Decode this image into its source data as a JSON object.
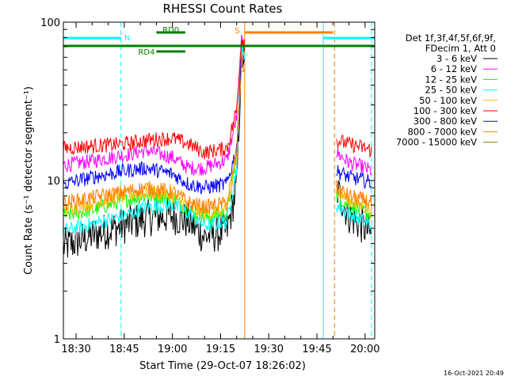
{
  "chart_data": {
    "type": "line",
    "title": "RHESSI Count Rates",
    "xlabel": "Start Time (29-Oct-07 18:26:02)",
    "ylabel": "Count Rate (s⁻¹ detector segment⁻¹)",
    "yscale": "log",
    "ylim": [
      1,
      100
    ],
    "xlim": [
      "18:26:02",
      "20:03:00"
    ],
    "x_ticks": [
      "18:30",
      "18:45",
      "19:00",
      "19:15",
      "19:30",
      "19:45",
      "20:00"
    ],
    "y_ticks": [
      "1",
      "10",
      "100"
    ],
    "legend_header": [
      "Det 1f,3f,4f,5f,6f,9f,",
      "FDecim 1, Att 0"
    ],
    "legend_position": "top-right, outside plot",
    "timestamp": "16-Oct-2021 20:49",
    "series": [
      {
        "name": "3 - 6 keV",
        "color": "#000000",
        "x": [
          "18:26:02",
          "18:35",
          "18:45",
          "18:52",
          "19:00",
          "19:05",
          "19:10",
          "19:17",
          "19:20",
          "19:21:30",
          "19:51",
          "19:55",
          "20:00",
          "20:02"
        ],
        "y": [
          3.8,
          4.5,
          5.2,
          5.8,
          6.0,
          5.5,
          4.4,
          4.8,
          9,
          60,
          9,
          6.0,
          5.0,
          4.5
        ]
      },
      {
        "name": "6 - 12 keV",
        "color": "#ff00ff",
        "x": [
          "18:26:02",
          "18:35",
          "18:45",
          "18:52",
          "19:00",
          "19:05",
          "19:10",
          "19:17",
          "19:20",
          "19:21:30",
          "19:51",
          "19:55",
          "20:00",
          "20:02"
        ],
        "y": [
          12.5,
          13.3,
          14.5,
          15.5,
          14.0,
          12.0,
          12.0,
          13.5,
          25,
          75,
          15,
          13.0,
          12.0,
          11.5
        ]
      },
      {
        "name": "12 - 25 keV",
        "color": "#00ff00",
        "x": [
          "18:26:02",
          "18:35",
          "18:45",
          "18:52",
          "19:00",
          "19:05",
          "19:10",
          "19:17",
          "19:20",
          "19:21:30",
          "19:51",
          "19:55",
          "20:00",
          "20:02"
        ],
        "y": [
          6.0,
          6.5,
          7.5,
          8.0,
          7.8,
          6.5,
          5.8,
          6.2,
          14,
          70,
          8,
          7.0,
          6.3,
          6.0
        ]
      },
      {
        "name": "25 - 50 keV",
        "color": "#00ffff",
        "x": [
          "18:26:02",
          "18:35",
          "18:45",
          "18:52",
          "19:00",
          "19:05",
          "19:10",
          "19:17",
          "19:20",
          "19:21:30",
          "19:51",
          "19:55",
          "20:00",
          "20:02"
        ],
        "y": [
          4.8,
          5.3,
          6.0,
          6.8,
          7.0,
          6.2,
          5.2,
          5.5,
          12,
          65,
          7,
          6.2,
          5.5,
          5.2
        ]
      },
      {
        "name": "50 - 100 keV",
        "color": "#ffbb00",
        "x": [
          "18:26:02",
          "18:35",
          "18:45",
          "18:52",
          "19:00",
          "19:05",
          "19:10",
          "19:17",
          "19:20",
          "19:21:30",
          "19:51",
          "19:55",
          "20:00",
          "20:02"
        ],
        "y": [
          6.5,
          7.2,
          8.0,
          8.5,
          8.0,
          6.8,
          6.2,
          6.5,
          14,
          55,
          8.5,
          7.5,
          6.8,
          6.5
        ]
      },
      {
        "name": "100 - 300 keV",
        "color": "#ff0000",
        "x": [
          "18:26:02",
          "18:35",
          "18:45",
          "18:52",
          "19:00",
          "19:05",
          "19:10",
          "19:17",
          "19:20",
          "19:21:30",
          "19:51",
          "19:55",
          "20:00",
          "20:02"
        ],
        "y": [
          16.0,
          16.5,
          17.0,
          18.0,
          18.5,
          17.0,
          15.0,
          16.0,
          28,
          80,
          18,
          17.0,
          16.0,
          15.5
        ]
      },
      {
        "name": "300 - 800 keV",
        "color": "#0000ff",
        "x": [
          "18:26:02",
          "18:35",
          "18:45",
          "18:52",
          "19:00",
          "19:05",
          "19:10",
          "19:17",
          "19:20",
          "19:21:30",
          "19:51",
          "19:55",
          "20:00",
          "20:02"
        ],
        "y": [
          9.5,
          10.5,
          11.5,
          12.0,
          11.0,
          9.5,
          9.0,
          9.5,
          16,
          60,
          11.5,
          10.5,
          10.0,
          9.7
        ]
      },
      {
        "name": "800 - 7000 keV",
        "color": "#ff8000",
        "x": [
          "18:26:02",
          "18:35",
          "18:45",
          "18:52",
          "19:00",
          "19:05",
          "19:10",
          "19:17",
          "19:20",
          "19:21:30",
          "19:51",
          "19:55",
          "20:00",
          "20:02"
        ],
        "y": [
          7.2,
          7.8,
          8.5,
          9.0,
          8.5,
          7.3,
          6.8,
          7.2,
          15,
          55,
          9,
          8.0,
          7.5,
          7.2
        ]
      },
      {
        "name": "7000 - 15000 keV",
        "color": "#808000",
        "x": [],
        "y": []
      }
    ],
    "annotations": [
      {
        "label": "N",
        "color": "#00ffff",
        "x_start": "18:26:02",
        "x_end": "18:44:00",
        "level": "top"
      },
      {
        "label": "",
        "color": "#00ffff",
        "x_start": "19:47:00",
        "x_end": "20:03:00",
        "level": "top"
      },
      {
        "label": "RD4",
        "color": "#008000",
        "x_start": "18:55:00",
        "x_end": "19:04:00",
        "level": "middle"
      },
      {
        "label": "RD0",
        "color": "#008000",
        "x_start": "18:55:00",
        "x_end": "19:04:00",
        "level": "upper"
      },
      {
        "label": "",
        "color": "#008000",
        "x_start": "18:26:02",
        "x_end": "20:03:00",
        "level": "band"
      },
      {
        "label": "S",
        "color": "#ff8000",
        "x_start": "19:22:30",
        "x_end": "19:50:00",
        "level": "upper"
      }
    ],
    "marker_lines": [
      {
        "time": "18:26:02",
        "color": "#00ffff",
        "style": "solid"
      },
      {
        "time": "18:44:00",
        "color": "#00ffff",
        "style": "dashed"
      },
      {
        "time": "19:22:30",
        "color": "#ff8000",
        "style": "solid"
      },
      {
        "time": "19:47:00",
        "color": "#00ffff",
        "style": "solid"
      },
      {
        "time": "19:50:30",
        "color": "#ff8000",
        "style": "dashed"
      },
      {
        "time": "20:02:00",
        "color": "#00ffff",
        "style": "dashed"
      }
    ],
    "data_gap": [
      "19:22:30",
      "19:51:00"
    ],
    "grid": false
  }
}
